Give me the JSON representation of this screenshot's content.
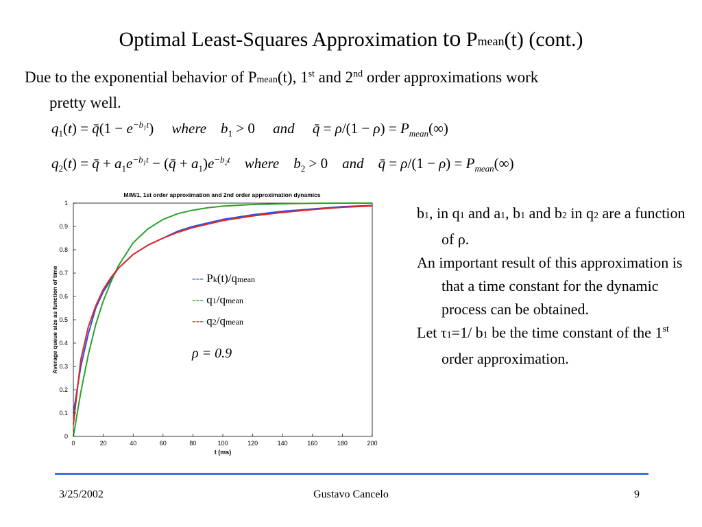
{
  "slide": {
    "title_main": "Optimal Least-Squares Approximation ",
    "title_to": "to",
    "title_p": " P",
    "title_sub": "mean",
    "title_end": "(t) (cont.)",
    "intro_a": "Due to the exponential behavior of P",
    "intro_sub": "mean",
    "intro_b": "(t), 1",
    "intro_sup1": "st",
    "intro_c": " and 2",
    "intro_sup2": "nd",
    "intro_d": " order approximations work",
    "intro_line2": "pretty well."
  },
  "right_text": {
    "p1_b": "b",
    "p1_s1": "1",
    "p1_a": ", in q",
    "p1_s2": "1",
    "p1_c": " and a",
    "p1_s3": "1",
    "p1_d": ", b",
    "p1_s4": "1",
    "p1_e": " and b",
    "p1_s5": "2",
    "p1_f": " in q",
    "p1_s6": "2",
    "p1_g": " are a function of ρ.",
    "p2": "An important result of this approximation is that a time constant for the dynamic process can be obtained.",
    "p3_a": "Let τ",
    "p3_s1": "1",
    "p3_b": "=1/ b",
    "p3_s2": "1",
    "p3_c": " be the time constant of the 1",
    "p3_sup": "st",
    "p3_d": " order approximation."
  },
  "footer": {
    "date": "3/25/2002",
    "author": "Gustavo Cancelo",
    "page": "9"
  },
  "chart_data": {
    "type": "line",
    "title": "M/M/1, 1st order approximation and 2nd order approximation dynamics",
    "xlabel": "t (ms)",
    "ylabel": "Average queue size as function of time",
    "xlim": [
      0,
      200
    ],
    "ylim": [
      0,
      1
    ],
    "x_ticks": [
      "0",
      "20",
      "40",
      "60",
      "80",
      "100",
      "120",
      "140",
      "160",
      "180",
      "200"
    ],
    "y_ticks": [
      "0",
      "0.1",
      "0.2",
      "0.3",
      "0.4",
      "0.5",
      "0.6",
      "0.7",
      "0.8",
      "0.9",
      "1"
    ],
    "legend": [
      {
        "dash": "---",
        "text": "P",
        "sub": "k",
        "rest": "(t)/q",
        "sub2": "mean",
        "color": "#2b50e0"
      },
      {
        "dash": "---",
        "text": "q",
        "sub": "1",
        "rest": "/q",
        "sub2": "mean",
        "color": "#2aa02a"
      },
      {
        "dash": "---",
        "text": "q",
        "sub": "2",
        "rest": "/q",
        "sub2": "mean",
        "color": "#e02828"
      }
    ],
    "annotation": "ρ = 0.9",
    "series": [
      {
        "color": "#2b50e0",
        "x": [
          0,
          5,
          10,
          15,
          20,
          25,
          30,
          40,
          50,
          60,
          70,
          80,
          90,
          100,
          120,
          140,
          160,
          180,
          200
        ],
        "y": [
          0.1,
          0.3,
          0.44,
          0.55,
          0.62,
          0.67,
          0.72,
          0.78,
          0.82,
          0.85,
          0.88,
          0.9,
          0.915,
          0.93,
          0.95,
          0.965,
          0.975,
          0.985,
          0.99
        ]
      },
      {
        "color": "#2aa02a",
        "x": [
          0,
          5,
          10,
          15,
          20,
          25,
          30,
          40,
          50,
          60,
          70,
          80,
          90,
          100,
          120,
          140,
          160,
          180,
          200
        ],
        "y": [
          0,
          0.19,
          0.35,
          0.48,
          0.58,
          0.66,
          0.73,
          0.83,
          0.89,
          0.93,
          0.955,
          0.97,
          0.98,
          0.987,
          0.994,
          0.997,
          0.999,
          1.0,
          1.0
        ]
      },
      {
        "color": "#e02828",
        "x": [
          0,
          5,
          10,
          15,
          20,
          25,
          30,
          40,
          50,
          60,
          70,
          80,
          90,
          100,
          120,
          140,
          160,
          180,
          200
        ],
        "y": [
          0.05,
          0.33,
          0.47,
          0.56,
          0.63,
          0.68,
          0.72,
          0.78,
          0.82,
          0.85,
          0.875,
          0.895,
          0.91,
          0.925,
          0.945,
          0.96,
          0.972,
          0.982,
          0.988
        ]
      }
    ]
  }
}
